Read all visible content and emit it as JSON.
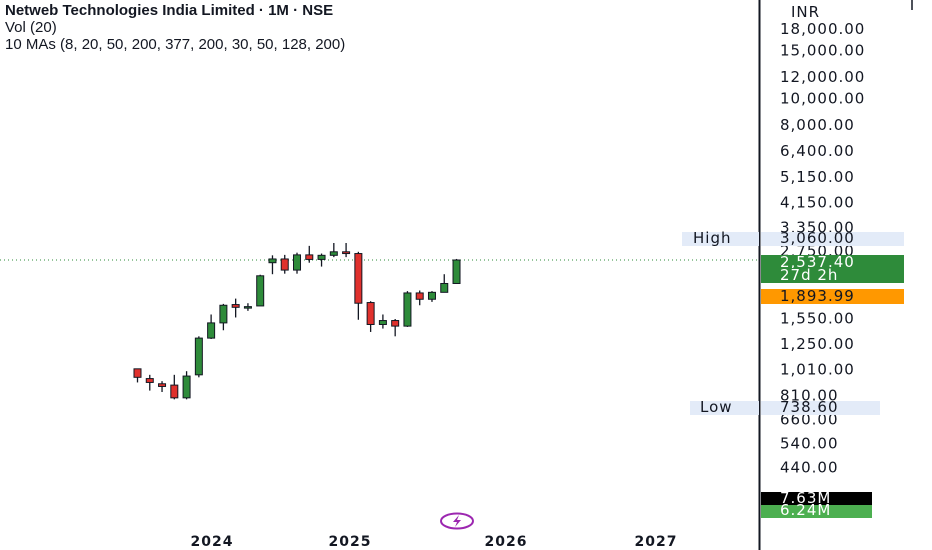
{
  "legend": {
    "title": "Netweb Technologies India Limited · 1M · NSE",
    "vol": "Vol (20)",
    "mas": "10 MAs (8, 20, 50, 200, 377, 200, 30, 50, 128, 200)"
  },
  "colors": {
    "up": "#2e8b3a",
    "down": "#e0312d",
    "price_line": "#2e8b3a",
    "prev_close": "#ff9800",
    "volume_badge": "#000000",
    "volume_ma_badge": "#4caf50",
    "highlow_bg": "#e3ebf8",
    "logo": "#9c27b0"
  },
  "icons": {
    "logo": "lightning-bolt-icon"
  },
  "chart_data": {
    "type": "candlestick",
    "currency_label": "INR",
    "y_scale": "log",
    "ylim": [
      400,
      18000
    ],
    "y_ticks": [
      {
        "value": 18000,
        "label": "18,000.00"
      },
      {
        "value": 15000,
        "label": "15,000.00"
      },
      {
        "value": 12000,
        "label": "12,000.00"
      },
      {
        "value": 10000,
        "label": "10,000.00"
      },
      {
        "value": 8000,
        "label": "8,000.00"
      },
      {
        "value": 6400,
        "label": "6,400.00"
      },
      {
        "value": 5150,
        "label": "5,150.00"
      },
      {
        "value": 4150,
        "label": "4,150.00"
      },
      {
        "value": 3350,
        "label": "3,350.00"
      },
      {
        "value": 2750,
        "label": "2,750.00"
      },
      {
        "value": 1550,
        "label": "1,550.00"
      },
      {
        "value": 1250,
        "label": "1,250.00"
      },
      {
        "value": 1010,
        "label": "1,010.00"
      },
      {
        "value": 810,
        "label": "810.00"
      },
      {
        "value": 660,
        "label": "660.00"
      },
      {
        "value": 540,
        "label": "540.00"
      },
      {
        "value": 440,
        "label": "440.00"
      }
    ],
    "x_ticks": [
      "2024",
      "2025",
      "2026",
      "2027"
    ],
    "candles": [
      {
        "date": "2023-07",
        "o": 1010,
        "h": 1010,
        "l": 900,
        "c": 940
      },
      {
        "date": "2023-08",
        "o": 930,
        "h": 960,
        "l": 840,
        "c": 900
      },
      {
        "date": "2023-09",
        "o": 890,
        "h": 910,
        "l": 830,
        "c": 870
      },
      {
        "date": "2023-10",
        "o": 880,
        "h": 960,
        "l": 780,
        "c": 790
      },
      {
        "date": "2023-11",
        "o": 790,
        "h": 990,
        "l": 780,
        "c": 950
      },
      {
        "date": "2023-12",
        "o": 960,
        "h": 1330,
        "l": 940,
        "c": 1310
      },
      {
        "date": "2024-01",
        "o": 1310,
        "h": 1600,
        "l": 1300,
        "c": 1490
      },
      {
        "date": "2024-02",
        "o": 1490,
        "h": 1750,
        "l": 1400,
        "c": 1730
      },
      {
        "date": "2024-03",
        "o": 1740,
        "h": 1830,
        "l": 1560,
        "c": 1700
      },
      {
        "date": "2024-04",
        "o": 1700,
        "h": 1760,
        "l": 1650,
        "c": 1710
      },
      {
        "date": "2024-05",
        "o": 1720,
        "h": 2240,
        "l": 1720,
        "c": 2220
      },
      {
        "date": "2024-06",
        "o": 2480,
        "h": 2640,
        "l": 2250,
        "c": 2560
      },
      {
        "date": "2024-07",
        "o": 2560,
        "h": 2650,
        "l": 2260,
        "c": 2330
      },
      {
        "date": "2024-08",
        "o": 2330,
        "h": 2700,
        "l": 2260,
        "c": 2650
      },
      {
        "date": "2024-09",
        "o": 2650,
        "h": 2860,
        "l": 2480,
        "c": 2550
      },
      {
        "date": "2024-10",
        "o": 2550,
        "h": 2680,
        "l": 2400,
        "c": 2640
      },
      {
        "date": "2024-11",
        "o": 2640,
        "h": 2930,
        "l": 2600,
        "c": 2720
      },
      {
        "date": "2024-12",
        "o": 2720,
        "h": 2930,
        "l": 2600,
        "c": 2680
      },
      {
        "date": "2025-01",
        "o": 2680,
        "h": 2720,
        "l": 1530,
        "c": 1760
      },
      {
        "date": "2025-02",
        "o": 1770,
        "h": 1790,
        "l": 1380,
        "c": 1470
      },
      {
        "date": "2025-03",
        "o": 1470,
        "h": 1600,
        "l": 1420,
        "c": 1520
      },
      {
        "date": "2025-04",
        "o": 1520,
        "h": 1540,
        "l": 1330,
        "c": 1450
      },
      {
        "date": "2025-05",
        "o": 1450,
        "h": 1950,
        "l": 1440,
        "c": 1920
      },
      {
        "date": "2025-06",
        "o": 1920,
        "h": 1960,
        "l": 1730,
        "c": 1820
      },
      {
        "date": "2025-07",
        "o": 1820,
        "h": 1950,
        "l": 1780,
        "c": 1930
      },
      {
        "date": "2025-08",
        "o": 1930,
        "h": 2250,
        "l": 1930,
        "c": 2080
      },
      {
        "date": "2025-09",
        "o": 2080,
        "h": 2560,
        "l": 2080,
        "c": 2537.4
      }
    ],
    "last_price": {
      "label": "2,537.40",
      "countdown": "27d 2h"
    },
    "prev_close": {
      "label": "1,893.99"
    },
    "high": {
      "name": "High",
      "label": "3,060.00"
    },
    "low": {
      "name": "Low",
      "label": "738.60"
    },
    "volume": {
      "label": "7.63M"
    },
    "volume_ma": {
      "label": "6.24M"
    }
  }
}
